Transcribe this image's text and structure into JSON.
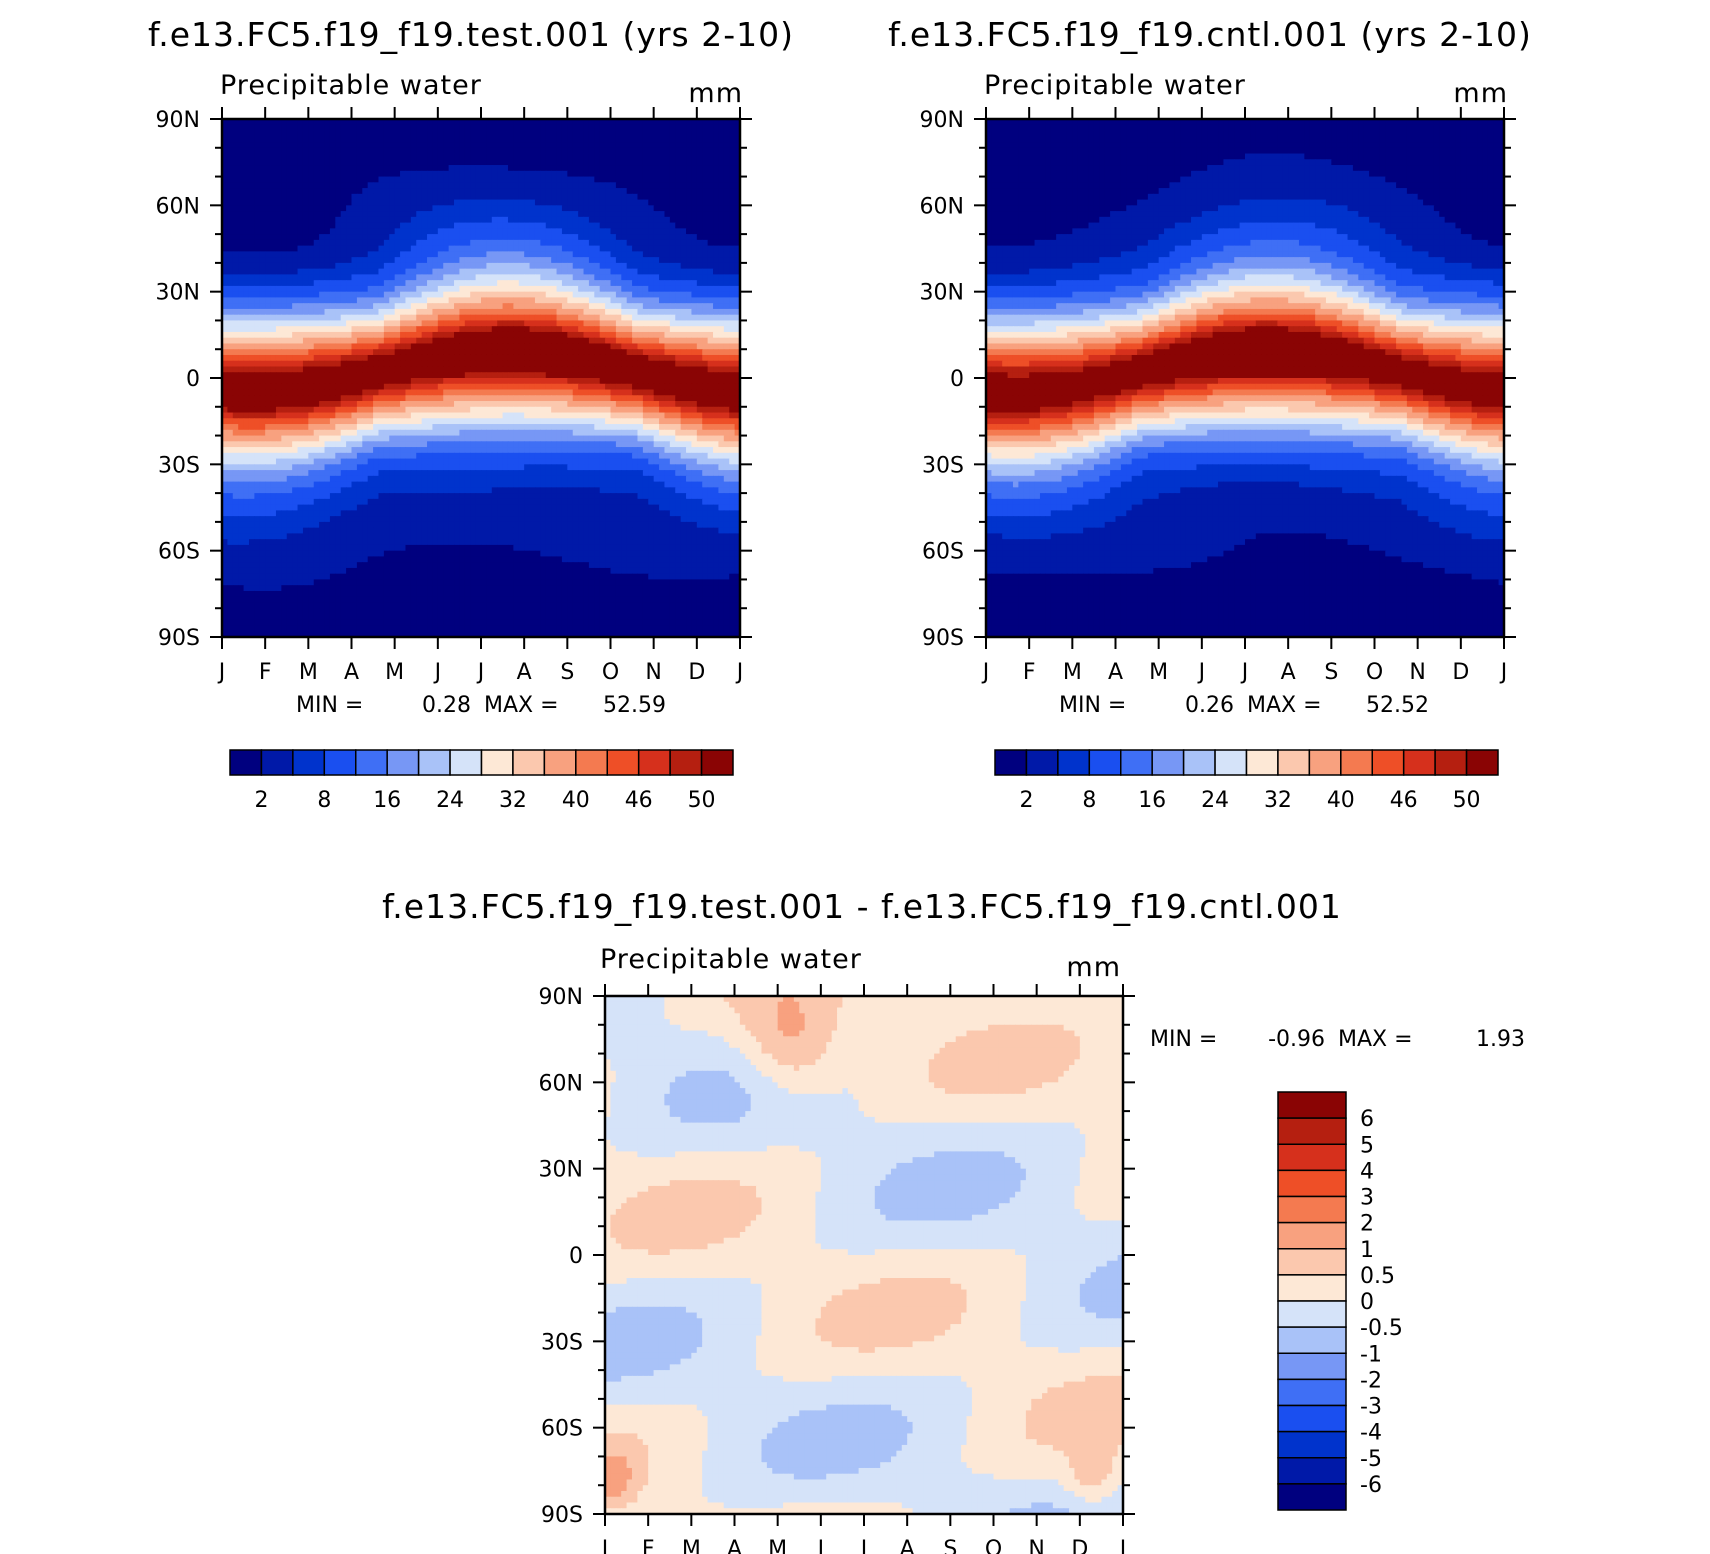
{
  "panels": [
    {
      "id": "test",
      "title": "f.e13.FC5.f19_f19.test.001 (yrs 2-10)",
      "subtitle": "Precipitable water",
      "units": "mm",
      "min_label": "MIN =",
      "min_value": "0.28",
      "max_label": "MAX =",
      "max_value": "52.59"
    },
    {
      "id": "cntl",
      "title": "f.e13.FC5.f19_f19.cntl.001 (yrs 2-10)",
      "subtitle": "Precipitable water",
      "units": "mm",
      "min_label": "MIN =",
      "min_value": "0.26",
      "max_label": "MAX =",
      "max_value": "52.52"
    },
    {
      "id": "diff",
      "title": "f.e13.FC5.f19_f19.test.001 - f.e13.FC5.f19_f19.cntl.001",
      "subtitle": "Precipitable water",
      "units": "mm",
      "min_label": "MIN =",
      "min_value": "-0.96",
      "max_label": "MAX =",
      "max_value": "1.93"
    }
  ],
  "chart_data": [
    {
      "type": "heatmap",
      "panel": "test",
      "title": "f.e13.FC5.f19_f19.test.001 (yrs 2-10)",
      "variable": "Precipitable water",
      "units": "mm",
      "x": [
        "J",
        "F",
        "M",
        "A",
        "M",
        "J",
        "J",
        "A",
        "S",
        "O",
        "N",
        "D",
        "J"
      ],
      "y_ticks": [
        "90N",
        "60N",
        "30N",
        "0",
        "30S",
        "60S",
        "90S"
      ],
      "y_tick_values": [
        90,
        60,
        30,
        0,
        -30,
        -60,
        -90
      ],
      "ylim": [
        -90,
        90
      ],
      "min": 0.28,
      "max": 52.59,
      "contour_levels": [
        2,
        5,
        8,
        12,
        16,
        20,
        24,
        28,
        32,
        36,
        40,
        43,
        46,
        48,
        50
      ],
      "colorbar_labels": [
        "2",
        "8",
        "16",
        "24",
        "32",
        "40",
        "46",
        "50"
      ]
    },
    {
      "type": "heatmap",
      "panel": "cntl",
      "title": "f.e13.FC5.f19_f19.cntl.001 (yrs 2-10)",
      "variable": "Precipitable water",
      "units": "mm",
      "x": [
        "J",
        "F",
        "M",
        "A",
        "M",
        "J",
        "J",
        "A",
        "S",
        "O",
        "N",
        "D",
        "J"
      ],
      "y_ticks": [
        "90N",
        "60N",
        "30N",
        "0",
        "30S",
        "60S",
        "90S"
      ],
      "y_tick_values": [
        90,
        60,
        30,
        0,
        -30,
        -60,
        -90
      ],
      "ylim": [
        -90,
        90
      ],
      "min": 0.26,
      "max": 52.52,
      "contour_levels": [
        2,
        5,
        8,
        12,
        16,
        20,
        24,
        28,
        32,
        36,
        40,
        43,
        46,
        48,
        50
      ],
      "colorbar_labels": [
        "2",
        "8",
        "16",
        "24",
        "32",
        "40",
        "46",
        "50"
      ]
    },
    {
      "type": "heatmap",
      "panel": "diff",
      "title": "f.e13.FC5.f19_f19.test.001 - f.e13.FC5.f19_f19.cntl.001",
      "variable": "Precipitable water",
      "units": "mm",
      "x": [
        "J",
        "F",
        "M",
        "A",
        "M",
        "J",
        "J",
        "A",
        "S",
        "O",
        "N",
        "D",
        "J"
      ],
      "y_ticks": [
        "90N",
        "60N",
        "30N",
        "0",
        "30S",
        "60S",
        "90S"
      ],
      "y_tick_values": [
        90,
        60,
        30,
        0,
        -30,
        -60,
        -90
      ],
      "ylim": [
        -90,
        90
      ],
      "min": -0.96,
      "max": 1.93,
      "contour_levels": [
        -6,
        -5,
        -4,
        -3,
        -2,
        -1,
        -0.5,
        0,
        0.5,
        1,
        2,
        3,
        4,
        5,
        6
      ],
      "colorbar_labels": [
        "6",
        "5",
        "4",
        "3",
        "2",
        "1",
        "0.5",
        "0",
        "-0.5",
        "-1",
        "-2",
        "-3",
        "-4",
        "-5",
        "-6"
      ]
    }
  ],
  "colors": {
    "seq15": [
      "#00007f",
      "#0019a8",
      "#0033cc",
      "#1a4ff0",
      "#3f6ff5",
      "#7797f5",
      "#a9c2f8",
      "#d5e3f9",
      "#fde8d6",
      "#fbc8ae",
      "#f8a17f",
      "#f47a50",
      "#ee4f27",
      "#d6301c",
      "#b51f10",
      "#8a0404"
    ],
    "diverging16": [
      "#8a0404",
      "#b51f10",
      "#d6301c",
      "#ee4f27",
      "#f47a50",
      "#f8a17f",
      "#fbc8ae",
      "#fde8d6",
      "#d5e3f9",
      "#a9c2f8",
      "#7797f5",
      "#3f6ff5",
      "#1a4ff0",
      "#0033cc",
      "#0019a8",
      "#00007f"
    ]
  }
}
